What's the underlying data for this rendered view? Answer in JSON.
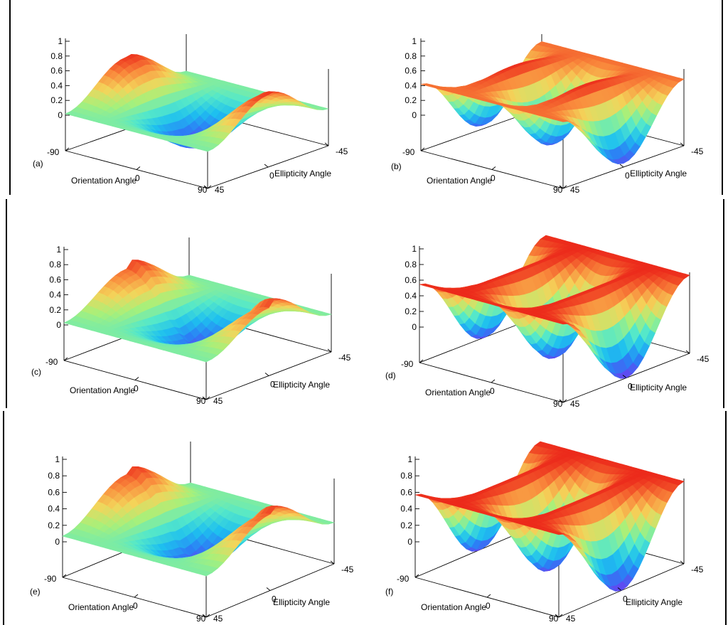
{
  "figure": {
    "panels": [
      {
        "label": "(a)",
        "profile": "low"
      },
      {
        "label": "(b)",
        "profile": "high"
      },
      {
        "label": "(c)",
        "profile": "low"
      },
      {
        "label": "(d)",
        "profile": "high"
      },
      {
        "label": "(e)",
        "profile": "low"
      },
      {
        "label": "(f)",
        "profile": "high"
      }
    ],
    "colormap": [
      "#6a3ff0",
      "#2d7cf5",
      "#1ec0ef",
      "#55e8c9",
      "#a8f07a",
      "#f4d45a",
      "#f98a3c",
      "#ec2a1b"
    ]
  },
  "chart_data": [
    {
      "panel": "(a)",
      "type": "surface",
      "xlabel": "Orientation Angle",
      "ylabel": "Ellipticity Angle",
      "x_ticks": [
        "-90",
        "0",
        "90"
      ],
      "y_ticks": [
        "45",
        "0",
        "-45"
      ],
      "z_ticks": [
        "0",
        "0.2",
        "0.4",
        "0.6",
        "0.8",
        "1"
      ],
      "xlim": [
        -90,
        90
      ],
      "ylim": [
        -45,
        45
      ],
      "zlim": [
        0,
        1
      ],
      "surface_values": {
        "ellipticity_edges": 0.5,
        "peak_near_circular": 1.0,
        "ridge_at_orientation_plus_minus_90": 0.95,
        "trough_at_orientation_0": 0.0
      }
    },
    {
      "panel": "(b)",
      "type": "surface",
      "xlabel": "Orientation Angle",
      "ylabel": "Ellipticity Angle",
      "x_ticks": [
        "-90",
        "0",
        "90"
      ],
      "y_ticks": [
        "45",
        "0",
        "-45"
      ],
      "z_ticks": [
        "0",
        "0.2",
        "0.4",
        "0.6",
        "0.8",
        "1"
      ],
      "xlim": [
        -90,
        90
      ],
      "ylim": [
        -45,
        45
      ],
      "zlim": [
        0,
        1
      ],
      "surface_values": {
        "ellipticity_edges": 0.9,
        "plateau": 1.0,
        "dips_at_orientation_-90_0_90": 0.05
      }
    },
    {
      "panel": "(c)",
      "type": "surface",
      "xlabel": "Orientation Angle",
      "ylabel": "Ellipticity Angle",
      "x_ticks": [
        "-90",
        "0",
        "90"
      ],
      "y_ticks": [
        "45",
        "0",
        "-45"
      ],
      "z_ticks": [
        "0",
        "0.2",
        "0.4",
        "0.6",
        "0.8",
        "1"
      ],
      "xlim": [
        -90,
        90
      ],
      "ylim": [
        -45,
        45
      ],
      "zlim": [
        0,
        1
      ],
      "surface_values": {
        "ellipticity_edges": 0.5,
        "peak_near_circular": 1.0,
        "ridge_at_orientation_plus_minus_90": 0.8,
        "trough_at_orientation_0": 0.0
      }
    },
    {
      "panel": "(d)",
      "type": "surface",
      "xlabel": "Orientation Angle",
      "ylabel": "Ellipticity Angle",
      "x_ticks": [
        "-90",
        "0",
        "90"
      ],
      "y_ticks": [
        "45",
        "0",
        "-45"
      ],
      "z_ticks": [
        "0",
        "0.2",
        "0.4",
        "0.6",
        "0.8",
        "1"
      ],
      "xlim": [
        -90,
        90
      ],
      "ylim": [
        -45,
        45
      ],
      "zlim": [
        0,
        1
      ],
      "surface_values": {
        "ellipticity_edges": 1.0,
        "plateau": 1.0,
        "dips_at_orientation_-90_0_90": 0.0
      }
    },
    {
      "panel": "(e)",
      "type": "surface",
      "xlabel": "Orientation Angle",
      "ylabel": "Ellipticity Angle",
      "x_ticks": [
        "-90",
        "0",
        "90"
      ],
      "y_ticks": [
        "45",
        "0",
        "-45"
      ],
      "z_ticks": [
        "0",
        "0.2",
        "0.4",
        "0.6",
        "0.8",
        "1"
      ],
      "xlim": [
        -90,
        90
      ],
      "ylim": [
        -45,
        45
      ],
      "zlim": [
        0,
        1
      ],
      "surface_values": {
        "ellipticity_edges": 0.5,
        "peak_near_circular": 1.0,
        "ridge_at_orientation_plus_minus_90": 0.85,
        "trough_at_orientation_0": 0.0
      }
    },
    {
      "panel": "(f)",
      "type": "surface",
      "xlabel": "Orientation Angle",
      "ylabel": "Ellipticity Angle",
      "x_ticks": [
        "-90",
        "0",
        "90"
      ],
      "y_ticks": [
        "45",
        "0",
        "-45"
      ],
      "z_ticks": [
        "0",
        "0.2",
        "0.4",
        "0.6",
        "0.8",
        "1"
      ],
      "xlim": [
        -90,
        90
      ],
      "ylim": [
        -45,
        45
      ],
      "zlim": [
        0,
        1
      ],
      "surface_values": {
        "ellipticity_edges": 1.0,
        "plateau": 1.0,
        "dips_at_orientation_-90_0_90": 0.0
      }
    }
  ]
}
